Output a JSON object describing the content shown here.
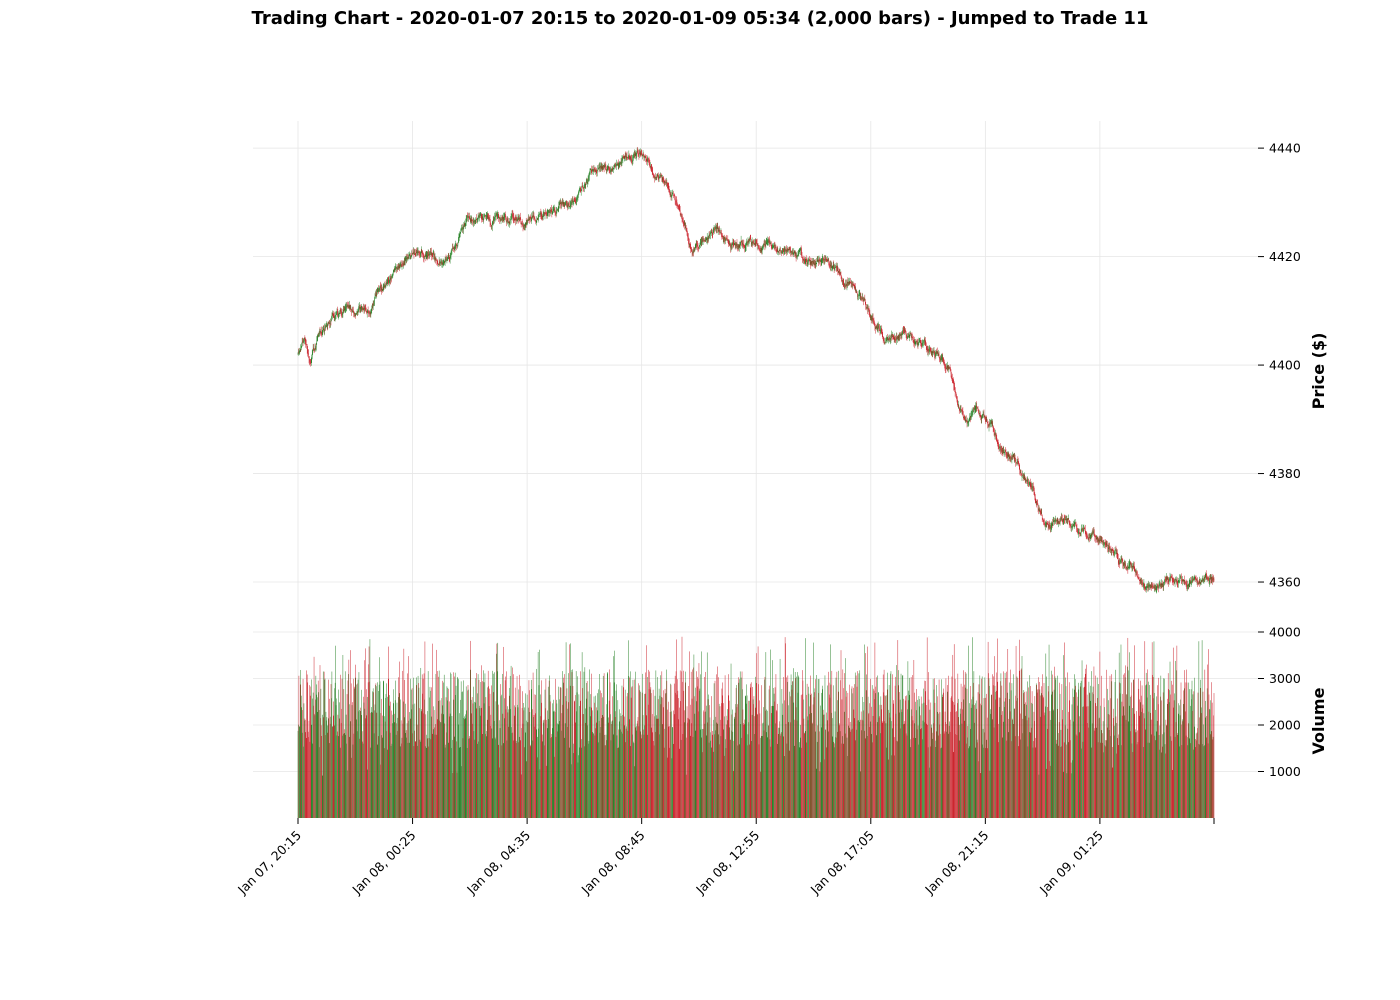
{
  "chart_data": {
    "type": "candlestick",
    "title": "Trading Chart - 2020-01-07 20:15 to 2020-01-09 05:34 (2,000 bars) - Jumped to Trade 11",
    "bar_count": 2000,
    "x_tick_labels": [
      "Jan 07, 20:15",
      "Jan 08, 00:25",
      "Jan 08, 04:35",
      "Jan 08, 08:45",
      "Jan 08, 12:55",
      "Jan 08, 17:05",
      "Jan 08, 21:15",
      "Jan 09, 01:25"
    ],
    "x_tick_bar_index": [
      0,
      250,
      500,
      750,
      1000,
      1250,
      1500,
      1750
    ],
    "price_panel": {
      "ylabel": "Price ($)",
      "ylim": [
        4353,
        4445
      ],
      "yticks": [
        4360,
        4380,
        4400,
        4420,
        4440
      ],
      "price_path": [
        [
          0,
          4402
        ],
        [
          15,
          4405
        ],
        [
          25,
          4401
        ],
        [
          50,
          4406
        ],
        [
          75,
          4409
        ],
        [
          110,
          4410
        ],
        [
          160,
          4411
        ],
        [
          200,
          4415
        ],
        [
          240,
          4420
        ],
        [
          270,
          4421
        ],
        [
          300,
          4419
        ],
        [
          340,
          4421
        ],
        [
          370,
          4426
        ],
        [
          410,
          4427
        ],
        [
          480,
          4427
        ],
        [
          500,
          4426
        ],
        [
          540,
          4428
        ],
        [
          600,
          4430
        ],
        [
          640,
          4435
        ],
        [
          700,
          4437
        ],
        [
          750,
          4439
        ],
        [
          770,
          4437
        ],
        [
          810,
          4433
        ],
        [
          840,
          4427
        ],
        [
          860,
          4421
        ],
        [
          880,
          4423
        ],
        [
          910,
          4425
        ],
        [
          940,
          4422
        ],
        [
          1000,
          4422
        ],
        [
          1040,
          4422
        ],
        [
          1080,
          4420
        ],
        [
          1120,
          4419
        ],
        [
          1160,
          4418
        ],
        [
          1200,
          4415
        ],
        [
          1250,
          4409
        ],
        [
          1280,
          4405
        ],
        [
          1320,
          4406
        ],
        [
          1370,
          4403
        ],
        [
          1420,
          4400
        ],
        [
          1440,
          4393
        ],
        [
          1460,
          4389
        ],
        [
          1480,
          4392
        ],
        [
          1510,
          4389
        ],
        [
          1540,
          4384
        ],
        [
          1570,
          4382
        ],
        [
          1600,
          4377
        ],
        [
          1630,
          4371
        ],
        [
          1670,
          4372
        ],
        [
          1710,
          4370
        ],
        [
          1750,
          4368
        ],
        [
          1790,
          4364
        ],
        [
          1830,
          4361
        ],
        [
          1870,
          4358
        ],
        [
          1900,
          4361
        ],
        [
          1960,
          4360
        ],
        [
          1999,
          4361
        ]
      ]
    },
    "volume_panel": {
      "ylabel": "Volume",
      "ylim": [
        0,
        4000
      ],
      "yticks": [
        1000,
        2000,
        3000,
        4000
      ],
      "typical_range": [
        1500,
        3200
      ],
      "max_observed": 3900
    },
    "colors": {
      "up": "#1a7a1a",
      "down": "#c8141e",
      "grid": "#e6e6e6"
    },
    "grid": true
  }
}
